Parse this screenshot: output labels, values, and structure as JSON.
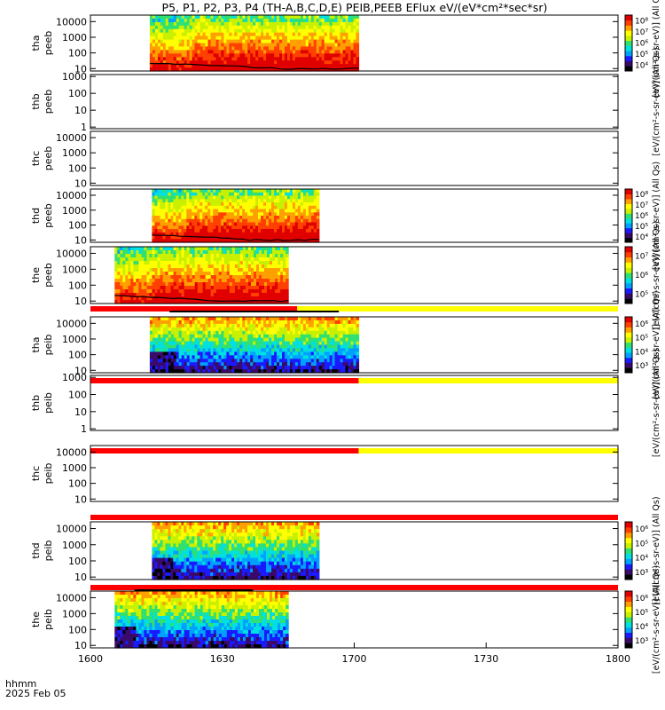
{
  "chart_data": {
    "type": "heatmap",
    "title": "P5, P1, P2, P3, P4 (TH-A,B,C,D,E) PEIB,PEEB EFlux eV/(eV*cm²*sec*sr)",
    "xlabel_line1": "hhmm",
    "xlabel_line2": "2025 Feb 05",
    "x_ticks": [
      "1600",
      "1630",
      "1700",
      "1730",
      "1800"
    ],
    "x_range_minutes": [
      0,
      120
    ],
    "y_scale": "log",
    "colors": {
      "spectrum": [
        "#000000",
        "#3a0a6a",
        "#1a1aff",
        "#00a0ff",
        "#00e0e0",
        "#30e070",
        "#c8f000",
        "#ffff00",
        "#ffa000",
        "#ff4000",
        "#e00000"
      ],
      "bar_red": "#ff0000",
      "bar_yellow": "#ffff00"
    },
    "panels": [
      {
        "probe": "tha",
        "product": "peeb",
        "ylabels": [
          "10",
          "100",
          "1000",
          "10000"
        ],
        "y_range": [
          7,
          26000
        ],
        "data_start_min": 13.5,
        "data_end_min": 61,
        "colorbar": true,
        "cb_ticks": [
          "10⁴",
          "10⁵",
          "10⁶",
          "10⁷",
          "10⁸"
        ],
        "cb_label": "[eV/(cm²-s-sr-eV)] (All Qs)"
      },
      {
        "probe": "thb",
        "product": "peeb",
        "ylabels": [
          "1",
          "10",
          "100",
          "1000"
        ],
        "y_range": [
          0.8,
          1300
        ],
        "data_start_min": null,
        "data_end_min": null,
        "colorbar": false,
        "cb_label": "[eV/(cm²-s-sr-eV)] (All Qs)"
      },
      {
        "probe": "thc",
        "product": "peeb",
        "ylabels": [
          "10",
          "100",
          "1000",
          "10000"
        ],
        "y_range": [
          7,
          26000
        ],
        "data_start_min": null,
        "data_end_min": null,
        "colorbar": false,
        "cb_label": "[eV/(cm²-s-sr-eV)] (All Qs)"
      },
      {
        "probe": "thd",
        "product": "peeb",
        "ylabels": [
          "10",
          "100",
          "1000",
          "10000"
        ],
        "y_range": [
          7,
          26000
        ],
        "data_start_min": 14,
        "data_end_min": 52,
        "colorbar": true,
        "cb_ticks": [
          "10⁴",
          "10⁵",
          "10⁶",
          "10⁷",
          "10⁸"
        ],
        "cb_label": "[eV/(cm²-s-sr-eV)] (All Qs)"
      },
      {
        "probe": "the",
        "product": "peeb",
        "ylabels": [
          "10",
          "100",
          "1000",
          "10000"
        ],
        "y_range": [
          7,
          26000
        ],
        "data_start_min": 5.5,
        "data_end_min": 45,
        "colorbar": true,
        "cb_ticks": [
          "10⁵",
          "10⁶",
          "10⁷"
        ],
        "cb_label": "[eV/(cm²-s-sr-eV)] (All Qs)",
        "status_bar_after": {
          "red_end_min": 47,
          "dark_start_min": 18,
          "dark_end_min": 56.5
        }
      },
      {
        "probe": "tha",
        "product": "peib",
        "ylabels": [
          "10",
          "100",
          "1000",
          "10000"
        ],
        "y_range": [
          7,
          26000
        ],
        "data_start_min": 13.5,
        "data_end_min": 61,
        "colorbar": true,
        "cb_ticks": [
          "10³",
          "10⁴",
          "10⁵",
          "10⁶"
        ],
        "cb_label": "[eV/(cm²-s-sr-eV)] (All Qs)",
        "status_bar_after": {
          "red_end_min": 61
        }
      },
      {
        "probe": "thb",
        "product": "peib",
        "ylabels": [
          "1",
          "10",
          "100",
          "1000"
        ],
        "y_range": [
          0.8,
          1300
        ],
        "data_start_min": null,
        "data_end_min": null,
        "colorbar": false,
        "cb_label": "[eV/(cm²-s-sr-eV)] (All Qs)",
        "status_bar_after": {
          "red_end_min": 61
        }
      },
      {
        "probe": "thc",
        "product": "peib",
        "ylabels": [
          "10",
          "100",
          "1000",
          "10000"
        ],
        "y_range": [
          7,
          26000
        ],
        "data_start_min": null,
        "data_end_min": null,
        "colorbar": false,
        "cb_label": "[eV/(cm²-s-sr-eV)] (All Qs)",
        "status_bar_after": {
          "red_end_min": 120
        }
      },
      {
        "probe": "thd",
        "product": "peib",
        "ylabels": [
          "10",
          "100",
          "1000",
          "10000"
        ],
        "y_range": [
          7,
          26000
        ],
        "data_start_min": 14,
        "data_end_min": 52,
        "colorbar": true,
        "cb_ticks": [
          "10³",
          "10⁴",
          "10⁵",
          "10⁶"
        ],
        "cb_label": "[eV/(cm²-s-sr-eV)] (All Qs)",
        "status_bar_after": {
          "red_end_min": 120,
          "dark_start_min": 10,
          "dark_end_min": 37
        }
      },
      {
        "probe": "the",
        "product": "peib",
        "ylabels": [
          "10",
          "100",
          "1000",
          "10000"
        ],
        "y_range": [
          7,
          26000
        ],
        "data_start_min": 5.5,
        "data_end_min": 45,
        "colorbar": true,
        "cb_ticks": [
          "10³",
          "10⁴",
          "10⁵",
          "10⁶"
        ],
        "cb_label": "[eV/(cm²-s-sr-eV)] (All Qs)"
      }
    ]
  }
}
